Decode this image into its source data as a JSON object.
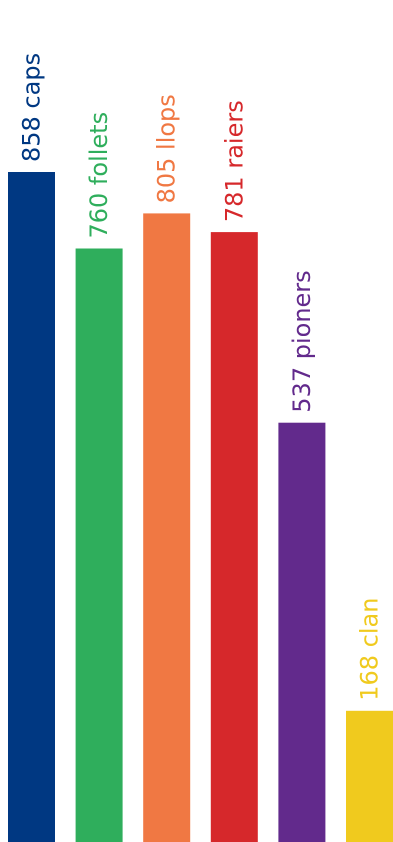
{
  "chart_data": {
    "type": "bar",
    "categories": [
      "caps",
      "follets",
      "llops",
      "raiers",
      "pioners",
      "clan"
    ],
    "series": [
      {
        "values": [
          858,
          760,
          805,
          781,
          537,
          168
        ]
      }
    ],
    "data_labels": [
      "858 caps",
      "760 follets",
      "805 llops",
      "781 raiers",
      "537 pioners",
      "168 clan"
    ],
    "colors": [
      "#003882",
      "#2fae5c",
      "#f07843",
      "#d6282b",
      "#622a8c",
      "#f0ca1e"
    ],
    "title": "",
    "xlabel": "",
    "ylabel": "",
    "ylim": [
      0,
      858
    ],
    "grid": false,
    "legend": "none",
    "label_orientation": "vertical, reading bottom-to-top, above each bar"
  }
}
